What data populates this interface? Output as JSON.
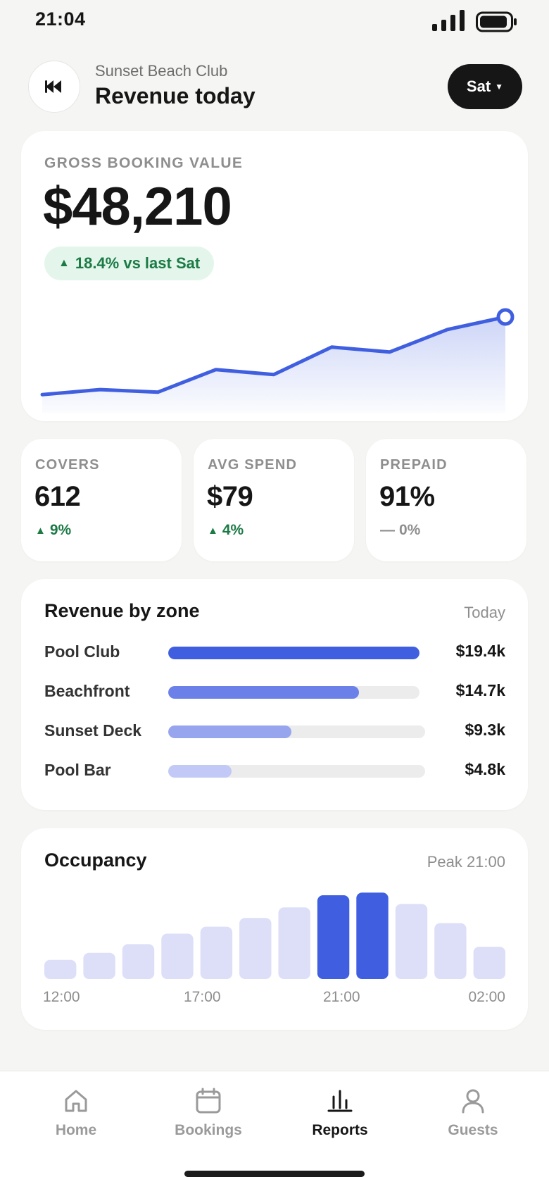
{
  "status_bar": {
    "time": "21:04"
  },
  "header": {
    "venue": "Sunset Beach Club",
    "title": "Revenue today",
    "day_selector": "Sat"
  },
  "gbv": {
    "label": "GROSS BOOKING VALUE",
    "value": "$48,210",
    "change": "18.4% vs last Sat"
  },
  "stats": [
    {
      "label": "COVERS",
      "value": "612",
      "delta": "9%",
      "trend": "up"
    },
    {
      "label": "AVG SPEND",
      "value": "$79",
      "delta": "4%",
      "trend": "up"
    },
    {
      "label": "PREPAID",
      "value": "91%",
      "delta": "0%",
      "trend": "flat"
    }
  ],
  "zones": {
    "title": "Revenue by zone",
    "period": "Today",
    "items": [
      {
        "name": "Pool Club",
        "amount": "$19.4k",
        "value": 19.4
      },
      {
        "name": "Beachfront",
        "amount": "$14.7k",
        "value": 14.7
      },
      {
        "name": "Sunset Deck",
        "amount": "$9.3k",
        "value": 9.3
      },
      {
        "name": "Pool Bar",
        "amount": "$4.8k",
        "value": 4.8
      }
    ]
  },
  "occupancy": {
    "title": "Occupancy",
    "peak": "Peak 21:00",
    "ticks": [
      "12:00",
      "17:00",
      "21:00",
      "02:00"
    ]
  },
  "chart_data": [
    {
      "type": "line",
      "values": [
        10,
        14,
        12,
        30,
        26,
        48,
        44,
        62,
        72
      ],
      "ylim": [
        0,
        90
      ],
      "grid": false,
      "color": "#3f5fe0"
    },
    {
      "type": "bar",
      "values": [
        22,
        30,
        40,
        52,
        60,
        70,
        82,
        96,
        99,
        86,
        64,
        37
      ],
      "highlight": [
        7,
        8
      ],
      "ylim": [
        0,
        100
      ],
      "x_ticks": [
        "12:00",
        "17:00",
        "21:00",
        "02:00"
      ],
      "grid": false
    }
  ],
  "colors": {
    "accent": "#3f5fe0",
    "positive": "#1c7a45",
    "positive_bg": "#e4f6ec",
    "bar_muted": "#dcdff7",
    "zone_fills": [
      "#3f5fe0",
      "#6b80e8",
      "#97a5ef",
      "#c2c9f6"
    ]
  },
  "nav": {
    "items": [
      {
        "label": "Home",
        "icon": "home-icon"
      },
      {
        "label": "Bookings",
        "icon": "calendar-icon"
      },
      {
        "label": "Reports",
        "icon": "bar-chart-icon",
        "active": true
      },
      {
        "label": "Guests",
        "icon": "person-icon"
      }
    ]
  }
}
